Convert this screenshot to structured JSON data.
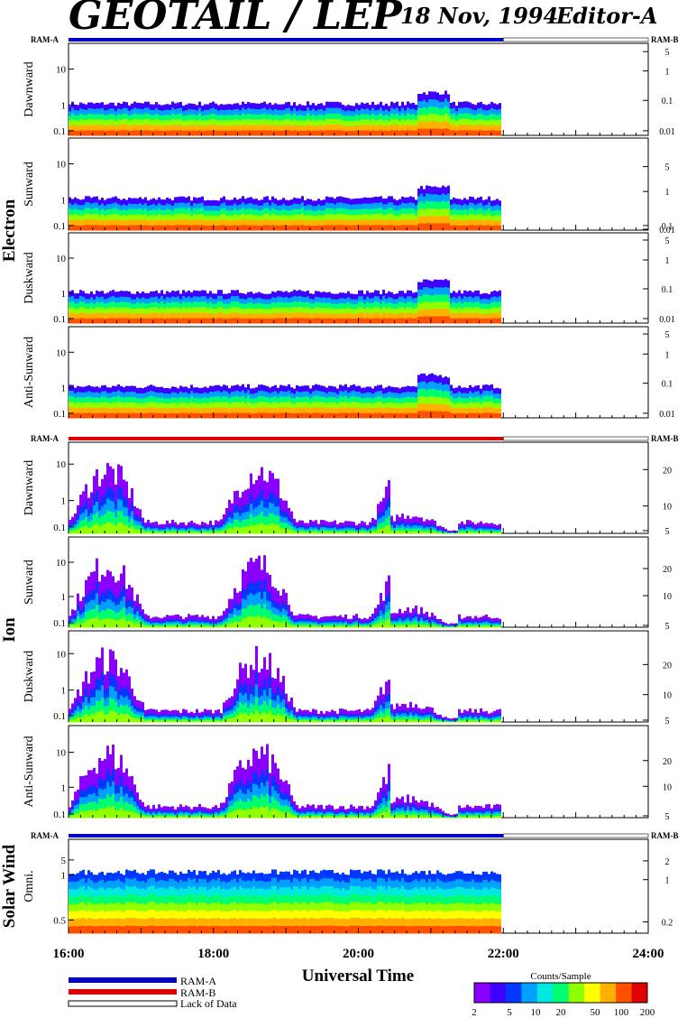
{
  "header": {
    "title": "GEOTAIL / LEP",
    "date": "18 Nov, 1994",
    "editor": "Editor-A"
  },
  "ram_label_left": "RAM-A",
  "ram_label_right": "RAM-B",
  "groups": {
    "electron": "Electron",
    "ion": "Ion",
    "solar_wind": "Solar Wind"
  },
  "legend": {
    "ram_a": "RAM-A",
    "ram_b": "RAM-B",
    "lack": "Lack of Data"
  },
  "colorbar": {
    "title": "Counts/Sample",
    "ticks": [
      "2",
      "5",
      "10",
      "20",
      "50",
      "100",
      "200"
    ]
  },
  "colors": {
    "ram_a": "#0000cc",
    "ram_b": "#dd0000",
    "spectrum": [
      "#8a00ff",
      "#3f00ff",
      "#0038ff",
      "#00a0ff",
      "#00e8e0",
      "#00ff70",
      "#90ff00",
      "#ffff00",
      "#ffb000",
      "#ff5000",
      "#e00000"
    ]
  },
  "chart_data": {
    "type": "heatmap",
    "xlabel": "Universal Time",
    "x_ticks": [
      "16:00",
      "18:00",
      "20:00",
      "22:00",
      "24:00"
    ],
    "x_range_hours": [
      16,
      24
    ],
    "data_end_hour": 22.0,
    "panels": [
      {
        "group": "electron",
        "label": "Dawnward",
        "ram_bar": "ram_a",
        "left_ticks": [
          "10",
          "1",
          "0.1"
        ],
        "right_ticks": [
          "5",
          "1",
          "0.1",
          "0.01"
        ]
      },
      {
        "group": "electron",
        "label": "Sunward",
        "ram_bar": null,
        "left_ticks": [
          "10",
          "1",
          "0.1"
        ],
        "right_ticks": [
          "5",
          "1",
          "0.1",
          "0.01"
        ]
      },
      {
        "group": "electron",
        "label": "Duskward",
        "ram_bar": null,
        "left_ticks": [
          "10",
          "1",
          "0.1"
        ],
        "right_ticks": [
          "5",
          "1",
          "0.1",
          "0.01"
        ]
      },
      {
        "group": "electron",
        "label": "Anti-Sunward",
        "ram_bar": null,
        "left_ticks": [
          "10",
          "1",
          "0.1"
        ],
        "right_ticks": [
          "5",
          "1",
          "0.1",
          "0.01"
        ]
      },
      {
        "group": "ion",
        "label": "Dawnward",
        "ram_bar": "ram_b",
        "left_ticks": [
          "10",
          "1",
          "0.1"
        ],
        "right_ticks": [
          "20",
          "10",
          "5"
        ]
      },
      {
        "group": "ion",
        "label": "Sunward",
        "ram_bar": null,
        "left_ticks": [
          "10",
          "1",
          "0.1"
        ],
        "right_ticks": [
          "20",
          "10",
          "5"
        ]
      },
      {
        "group": "ion",
        "label": "Duskward",
        "ram_bar": null,
        "left_ticks": [
          "10",
          "1",
          "0.1"
        ],
        "right_ticks": [
          "20",
          "10",
          "5"
        ]
      },
      {
        "group": "ion",
        "label": "Anti-Sunward",
        "ram_bar": null,
        "left_ticks": [
          "10",
          "1",
          "0.1"
        ],
        "right_ticks": [
          "20",
          "10",
          "5"
        ]
      },
      {
        "group": "solar_wind",
        "label": "Omni.",
        "ram_bar": "ram_a",
        "left_ticks": [
          "5",
          "1",
          "0.5"
        ],
        "right_ticks": [
          "2",
          "1",
          "0.2"
        ]
      }
    ]
  }
}
